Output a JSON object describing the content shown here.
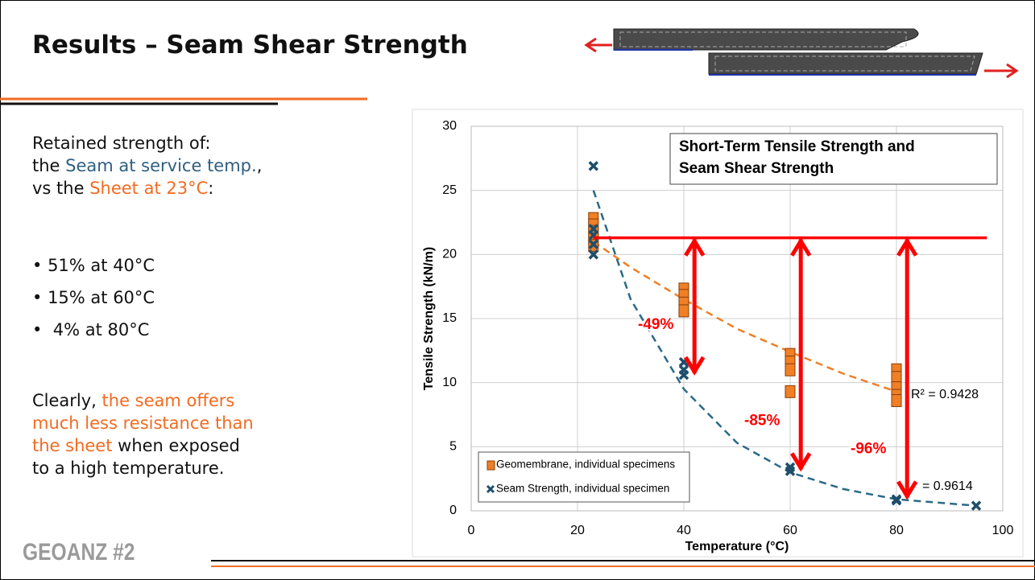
{
  "slide": {
    "title": "Results – Seam Shear Strength",
    "intro": [
      [
        "Retained strength of:"
      ],
      [
        "the ",
        "Seam at service temp.",
        ","
      ],
      [
        "vs the ",
        "Sheet at 23°C",
        ":"
      ]
    ],
    "bullets": [
      "51% at 40°C",
      "15% at 60°C",
      "4% at 80°C"
    ],
    "conclusion": [
      "Clearly, ",
      "the seam offers much less resistance than the sheet",
      " when exposed to a high temperature."
    ],
    "footer": "GEOANZ #2"
  },
  "chart_data": {
    "type": "scatter",
    "title_lines": [
      "Short-Term Tensile Strength and",
      "Seam Shear Strength"
    ],
    "x_label": "Temperature (°C)",
    "y_label": "Tensile Strength (kN/m)",
    "xlim": [
      0,
      100
    ],
    "ylim": [
      0,
      30
    ],
    "xticks": [
      0,
      20,
      40,
      60,
      80,
      100
    ],
    "yticks": [
      0,
      5,
      10,
      15,
      20,
      25,
      30
    ],
    "grid": true,
    "legend": "lower left",
    "series": [
      {
        "name": "Geomembrane, individual specimens",
        "color": "#f07f25",
        "marker": "square",
        "x": [
          23,
          23,
          23,
          23,
          23,
          40,
          40,
          40,
          40,
          60,
          60,
          60,
          60,
          80,
          80,
          80,
          80,
          80
        ],
        "values": [
          22.8,
          22.3,
          21.8,
          21.2,
          20.7,
          17.3,
          16.8,
          16.2,
          15.6,
          12.2,
          11.6,
          11.0,
          9.3,
          11.0,
          10.4,
          9.6,
          9.0,
          8.6
        ]
      },
      {
        "name": "Seam Strength, individual specimen",
        "color": "#1f4e6b",
        "marker": "x",
        "x": [
          23,
          23,
          23,
          23,
          23,
          40,
          40,
          40,
          60,
          60,
          80,
          80,
          95
        ],
        "values": [
          26.9,
          22.0,
          21.5,
          20.8,
          20.0,
          11.6,
          11.0,
          10.6,
          3.4,
          3.1,
          0.9,
          0.8,
          0.4
        ]
      }
    ],
    "trendlines": [
      {
        "color": "#f07f25",
        "x": [
          23,
          30,
          40,
          50,
          60,
          70,
          80
        ],
        "values": [
          21,
          19.0,
          16.5,
          14.2,
          12.4,
          10.7,
          9.3
        ],
        "label": "R² = 0.9428"
      },
      {
        "color": "#2a6a86",
        "x": [
          23,
          30,
          40,
          50,
          60,
          70,
          80,
          95
        ],
        "values": [
          25,
          16.5,
          9.5,
          5.3,
          3.0,
          1.7,
          0.9,
          0.4
        ],
        "label": "= 0.9614"
      }
    ],
    "reference_line": {
      "value": 21.3,
      "x": [
        23,
        97
      ],
      "color": "#ff0000"
    },
    "arrows": [
      {
        "x": 42,
        "from": 21.3,
        "to": 10.6,
        "label": "-49%"
      },
      {
        "x": 62,
        "from": 21.3,
        "to": 3.1,
        "label": "-85%"
      },
      {
        "x": 82,
        "from": 21.3,
        "to": 0.9,
        "label": "-96%"
      }
    ]
  }
}
